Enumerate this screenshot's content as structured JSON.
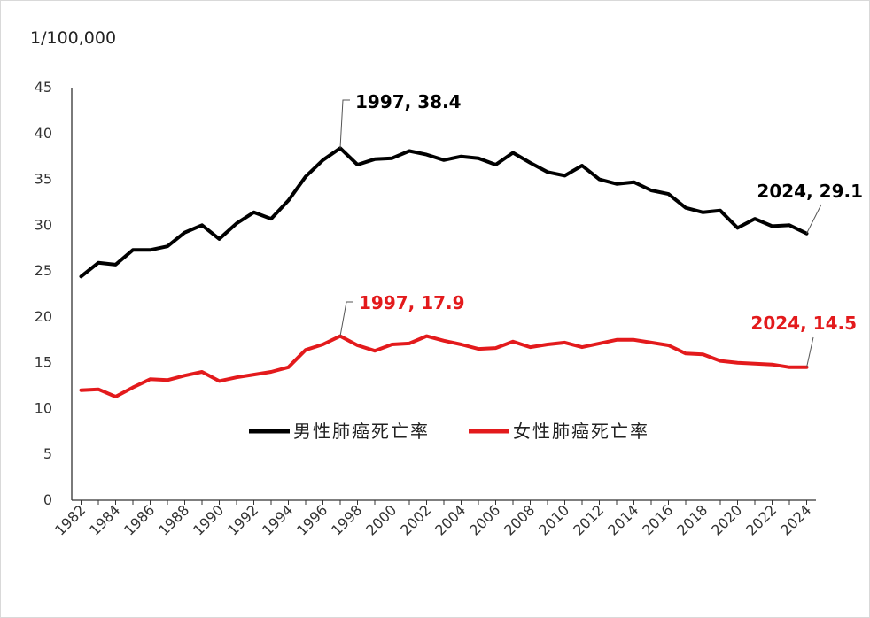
{
  "chart_data": {
    "type": "line",
    "ylabel": "1/100,000",
    "ylim": [
      0,
      45
    ],
    "yticks": [
      0,
      5,
      10,
      15,
      20,
      25,
      30,
      35,
      40,
      45
    ],
    "x_tick_labels": [
      "1982",
      "1984",
      "1986",
      "1988",
      "1990",
      "1992",
      "1994",
      "1996",
      "1998",
      "2000",
      "2002",
      "2004",
      "2006",
      "2008",
      "2010",
      "2012",
      "2014",
      "2016",
      "2018",
      "2020",
      "2022",
      "2024"
    ],
    "x": [
      1982,
      1983,
      1984,
      1985,
      1986,
      1987,
      1988,
      1989,
      1990,
      1991,
      1992,
      1993,
      1994,
      1995,
      1996,
      1997,
      1998,
      1999,
      2000,
      2001,
      2002,
      2003,
      2004,
      2005,
      2006,
      2007,
      2008,
      2009,
      2010,
      2011,
      2012,
      2013,
      2014,
      2015,
      2016,
      2017,
      2018,
      2019,
      2020,
      2021,
      2022,
      2023,
      2024
    ],
    "series": [
      {
        "name": "男性肺癌死亡率",
        "color": "#000000",
        "values": [
          24.4,
          25.9,
          25.7,
          27.3,
          27.3,
          27.7,
          29.2,
          30.0,
          28.5,
          30.2,
          31.4,
          30.7,
          32.7,
          35.3,
          37.1,
          38.4,
          36.6,
          37.2,
          37.3,
          38.1,
          37.7,
          37.1,
          37.5,
          37.3,
          36.6,
          37.9,
          36.8,
          35.8,
          35.4,
          36.5,
          35.0,
          34.5,
          34.7,
          33.8,
          33.4,
          31.9,
          31.4,
          31.6,
          29.7,
          30.7,
          29.9,
          30.0,
          29.1
        ]
      },
      {
        "name": "女性肺癌死亡率",
        "color": "#e31a1c",
        "values": [
          12.0,
          12.1,
          11.3,
          12.3,
          13.2,
          13.1,
          13.6,
          14.0,
          13.0,
          13.4,
          13.7,
          14.0,
          14.5,
          16.4,
          17.0,
          17.9,
          16.9,
          16.3,
          17.0,
          17.1,
          17.9,
          17.4,
          17.0,
          16.5,
          16.6,
          17.3,
          16.7,
          17.0,
          17.2,
          16.7,
          17.1,
          17.5,
          17.5,
          17.2,
          16.9,
          16.0,
          15.9,
          15.2,
          15.0,
          14.9,
          14.8,
          14.5,
          14.5
        ]
      }
    ],
    "annotations": [
      {
        "series": 0,
        "x": 1997,
        "text": "1997, 38.4"
      },
      {
        "series": 0,
        "x": 2024,
        "text": "2024, 29.1"
      },
      {
        "series": 1,
        "x": 1997,
        "text": "1997, 17.9"
      },
      {
        "series": 1,
        "x": 2024,
        "text": "2024, 14.5"
      }
    ],
    "grid": false,
    "legend_position": "center"
  }
}
